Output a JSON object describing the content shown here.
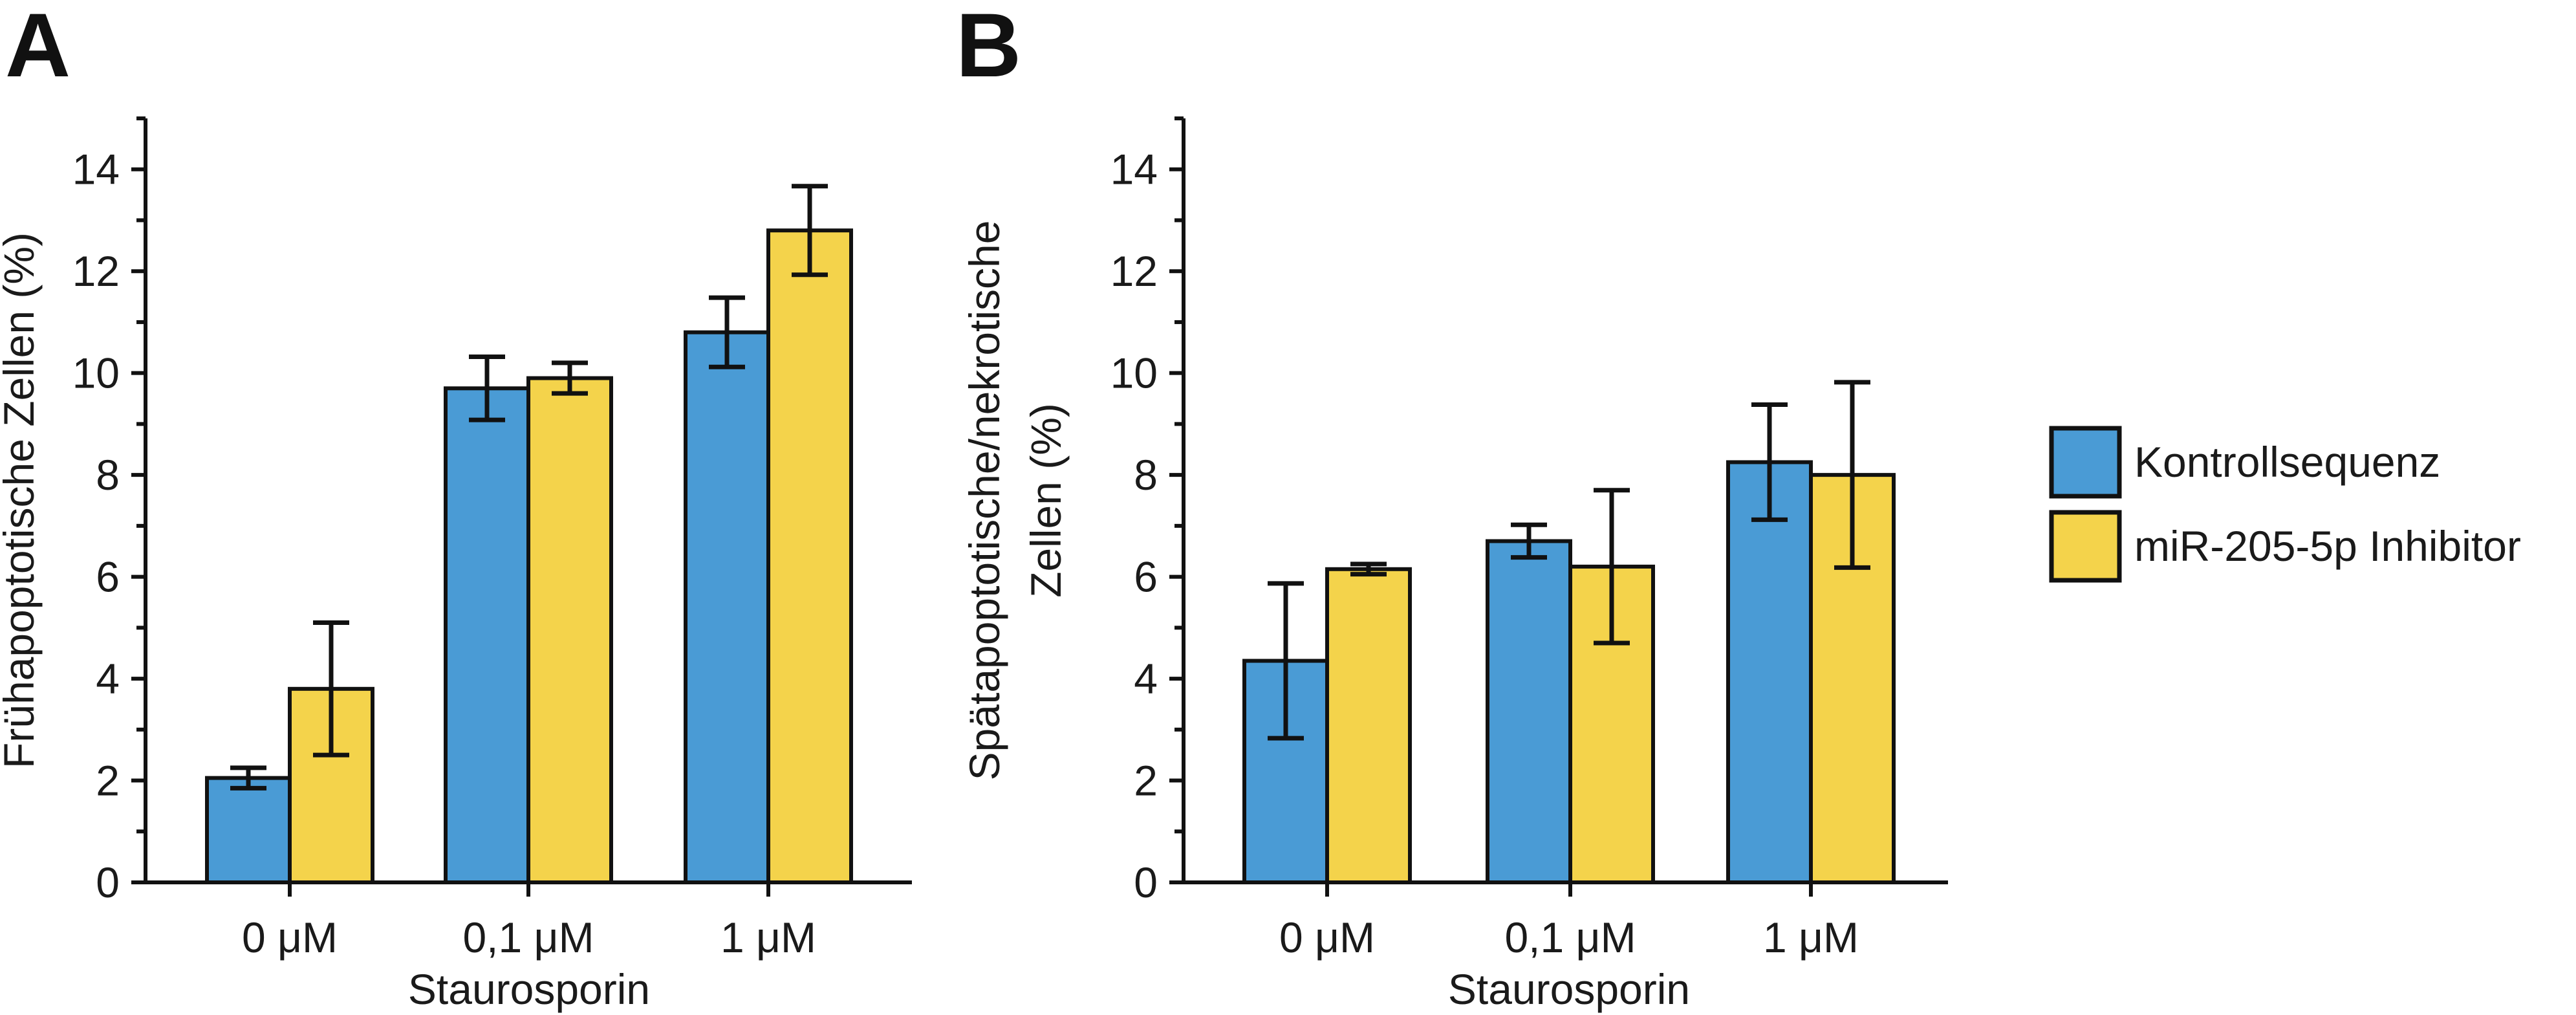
{
  "colors": {
    "kontroll": "#4a9bd5",
    "inhibitor": "#f4d34b",
    "ink": "#111111"
  },
  "chart_data": [
    {
      "panel": "A",
      "type": "bar",
      "xlabel": "Staurosporin",
      "ylabel": "Frühapoptotische Zellen (%)",
      "ylim": [
        0,
        15
      ],
      "yticks": [
        "0",
        "2",
        "4",
        "6",
        "8",
        "10",
        "12",
        "14"
      ],
      "categories": [
        "0 μM",
        "0,1 μM",
        "1 μM"
      ],
      "series": [
        {
          "name": "Kontrollsequenz",
          "values": [
            2.05,
            9.7,
            10.8
          ],
          "errors": [
            0.2,
            0.62,
            0.68
          ]
        },
        {
          "name": "miR-205-5p Inhibitor",
          "values": [
            3.8,
            9.9,
            12.8
          ],
          "errors": [
            1.3,
            0.3,
            0.87
          ]
        }
      ]
    },
    {
      "panel": "B",
      "type": "bar",
      "xlabel": "Staurosporin",
      "ylabel_lines": [
        "Spätapoptotische/nekrotische",
        "Zellen (%)"
      ],
      "ylim": [
        0,
        15
      ],
      "yticks": [
        "0",
        "2",
        "4",
        "6",
        "8",
        "10",
        "12",
        "14"
      ],
      "categories": [
        "0 μM",
        "0,1 μM",
        "1 μM"
      ],
      "series": [
        {
          "name": "Kontrollsequenz",
          "values": [
            4.35,
            6.7,
            8.25
          ],
          "errors": [
            1.52,
            0.32,
            1.13
          ]
        },
        {
          "name": "miR-205-5p Inhibitor",
          "values": [
            6.15,
            6.2,
            8.0
          ],
          "errors": [
            0.1,
            1.5,
            1.82
          ]
        }
      ]
    }
  ],
  "legend": {
    "items": [
      "Kontrollsequenz",
      "miR-205-5p Inhibitor"
    ]
  }
}
